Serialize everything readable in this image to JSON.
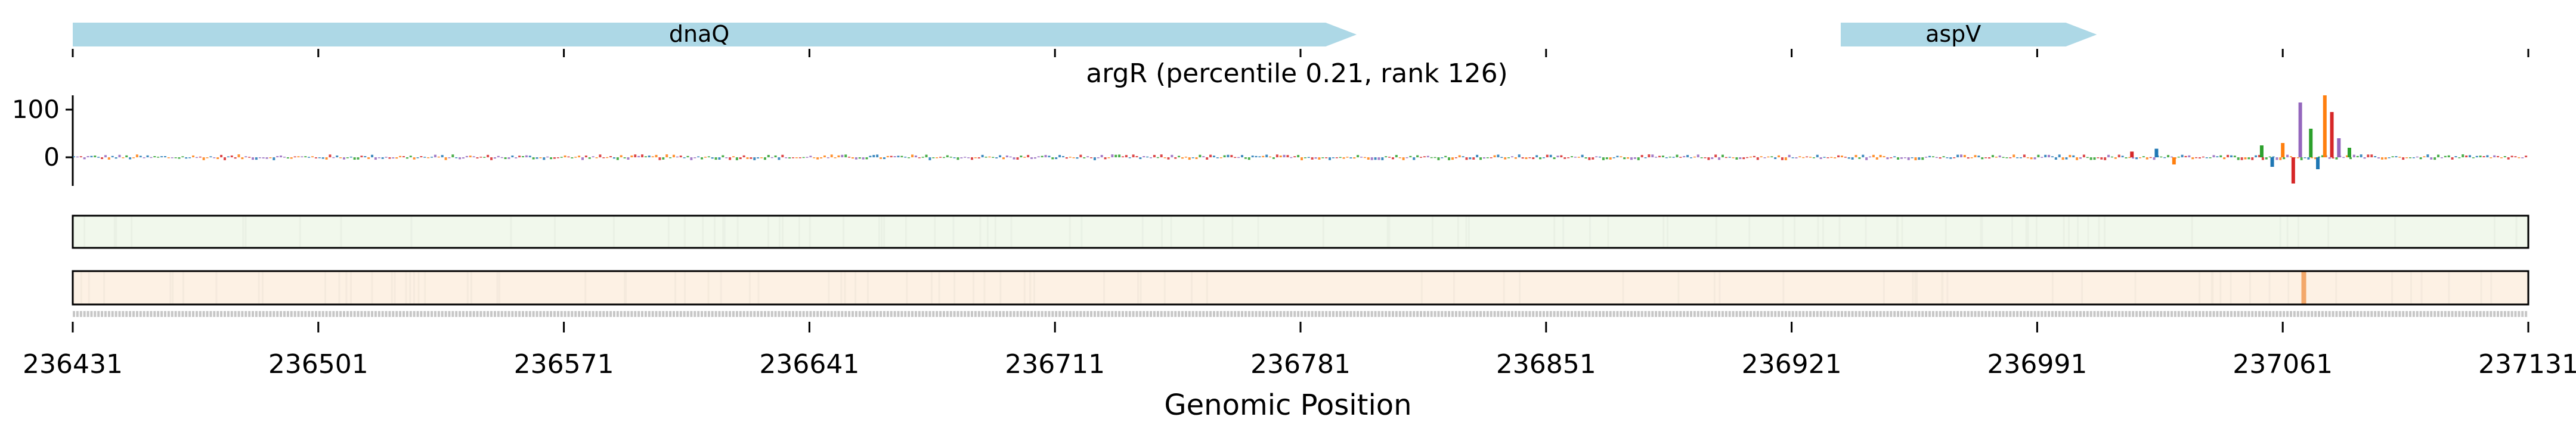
{
  "chart_data": {
    "type": "genomic-track",
    "title": "argR (percentile 0.21, rank 126)",
    "xlabel": "Genomic Position",
    "ylabel": "",
    "xlim": [
      236431,
      237131
    ],
    "x_ticks": [
      "236431",
      "236501",
      "236571",
      "236641",
      "236711",
      "236781",
      "236851",
      "236921",
      "236991",
      "237061",
      "237131"
    ],
    "y_ticks": [
      "100",
      "0"
    ],
    "ylim": [
      -60,
      130
    ],
    "genes": [
      {
        "name": "dnaQ",
        "start": 236431,
        "end": 236797,
        "strand": "+",
        "color": "#add8e6"
      },
      {
        "name": "aspV",
        "start": 236935,
        "end": 237008,
        "strand": "+",
        "color": "#add8e6"
      }
    ],
    "attribution_peaks": [
      {
        "x": 237055,
        "value": 25
      },
      {
        "x": 237058,
        "value": -20
      },
      {
        "x": 237061,
        "value": 30
      },
      {
        "x": 237064,
        "value": -55
      },
      {
        "x": 237066,
        "value": 115
      },
      {
        "x": 237069,
        "value": 60
      },
      {
        "x": 237071,
        "value": -25
      },
      {
        "x": 237073,
        "value": 130
      },
      {
        "x": 237075,
        "value": 95
      },
      {
        "x": 237077,
        "value": 40
      },
      {
        "x": 237080,
        "value": 20
      },
      {
        "x": 237025,
        "value": 18
      },
      {
        "x": 237030,
        "value": -15
      },
      {
        "x": 237018,
        "value": 12
      }
    ],
    "heatmap_tracks": [
      {
        "name": "track-green",
        "base_color": "#f1f8ec",
        "border": "#000000"
      },
      {
        "name": "track-orange",
        "base_color": "#fdf1e4",
        "border": "#000000",
        "hotspot_x": 237067,
        "hotspot_color": "#f3a86a"
      }
    ],
    "base_colors": {
      "A": "#2ca02c",
      "C": "#1f77b4",
      "G": "#ff7f0e",
      "T": "#d62728",
      "other": "#9467bd"
    }
  }
}
